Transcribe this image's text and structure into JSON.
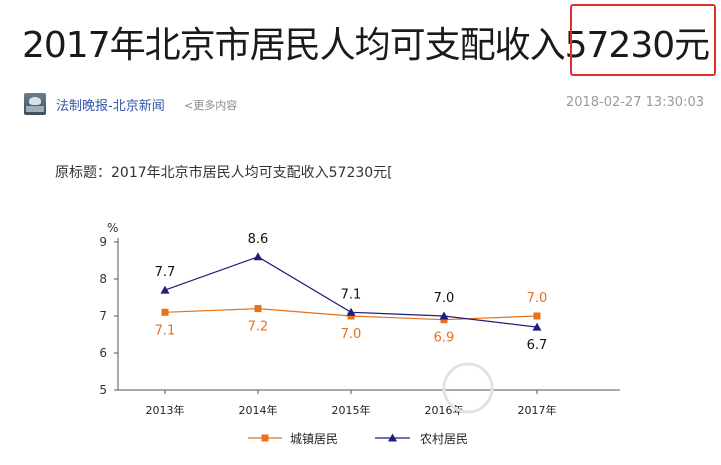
{
  "article": {
    "headline_main": "2017年北京市居民人均可支配收入",
    "headline_highlight": "57230元",
    "source": "法制晚报-北京新闻",
    "more_link": "<更多内容",
    "timestamp": "2018-02-27 13:30:03",
    "original_title_label": "原标题：",
    "original_title": "2017年北京市居民人均可支配收入57230元["
  },
  "colors": {
    "highlight_box": "#e03030",
    "series_urban": "#e8711c",
    "series_rural": "#1f1f7a"
  },
  "chart_data": {
    "type": "line",
    "categories": [
      "2013年",
      "2014年",
      "2015年",
      "2016年",
      "2017年"
    ],
    "ylabel": "%",
    "ylim": [
      5,
      9
    ],
    "yticks": [
      "5",
      "6",
      "7",
      "8",
      "9"
    ],
    "grid": false,
    "legend_position": "bottom",
    "series": [
      {
        "name": "城镇居民",
        "color": "#e8711c",
        "marker": "square",
        "values": [
          7.1,
          7.2,
          7.0,
          6.9,
          7.0
        ],
        "labels": [
          "7.1",
          "7.2",
          "7.0",
          "6.9",
          "7.0"
        ]
      },
      {
        "name": "农村居民",
        "color": "#1f1f7a",
        "marker": "triangle",
        "values": [
          7.7,
          8.6,
          7.1,
          7.0,
          6.7
        ],
        "labels": [
          "7.7",
          "8.6",
          "7.1",
          "7.0",
          "6.7"
        ]
      }
    ]
  }
}
